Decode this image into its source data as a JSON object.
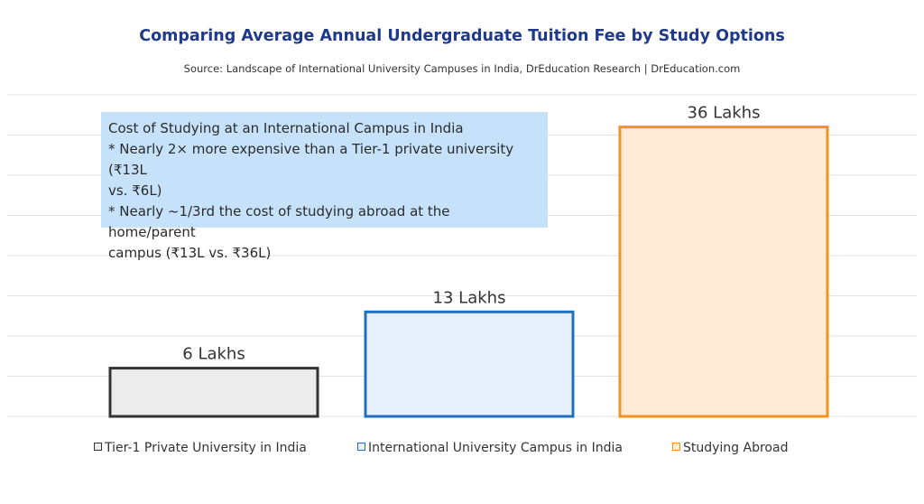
{
  "chart_data": {
    "type": "bar",
    "title": "Comparing Average Annual Undergraduate Tuition Fee by Study Options",
    "subtitle": "Source: Landscape of International University Campuses in India, DrEducation Research | DrEducation.com",
    "categories": [
      "Tier-1 Private University in India",
      "International University Campus in India",
      "Studying Abroad"
    ],
    "values": [
      6,
      13,
      36
    ],
    "data_labels": [
      "6 Lakhs",
      "13 Lakhs",
      "36 Lakhs"
    ],
    "ylim": [
      0,
      40
    ],
    "grid": true,
    "legend_position": "bottom",
    "series_colors": [
      {
        "fill": "#ececec",
        "stroke": "#333333"
      },
      {
        "fill": "#e7f0fc",
        "stroke": "#1f6fbf"
      },
      {
        "fill": "#fdebd8",
        "stroke": "#f0931f"
      }
    ],
    "annotation": {
      "lines": [
        "Cost of Studying at an International Campus in India",
        "* Nearly 2× more expensive than a Tier-1 private university (₹13L",
        "vs. ₹6L)",
        "* Nearly ~1/3rd the cost of studying abroad at the home/parent",
        "campus (₹13L vs. ₹36L)"
      ],
      "background": "#c6e2fb"
    }
  }
}
